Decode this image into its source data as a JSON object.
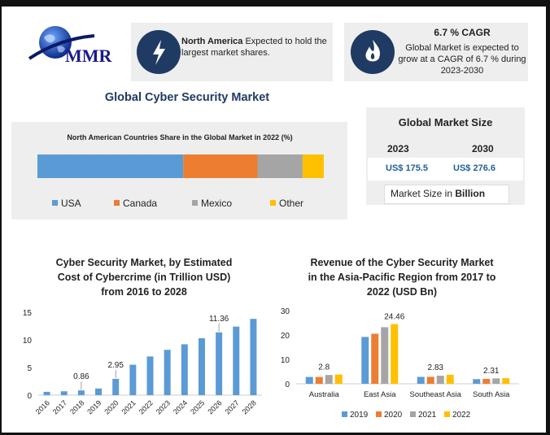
{
  "logo": {
    "text": "MMR"
  },
  "card_north_america": {
    "icon": "lightning-icon",
    "bold_text": "North America",
    "text": " Expected to hold the largest market shares."
  },
  "card_cagr": {
    "icon": "flame-icon",
    "title": "6.7 % CAGR",
    "text": "Global Market is expected to grow at a CAGR of 6.7 % during 2023-2030"
  },
  "page_title": "Global Cyber Security Market",
  "market_size": {
    "title": "Global Market Size",
    "year_1": "2023",
    "year_2": "2030",
    "value_1": "US$ 175.5",
    "value_2": "US$ 276.6",
    "note_prefix": "Market Size in ",
    "note_unit": "Billion"
  },
  "colors": {
    "blue": "#5b9bd5",
    "orange": "#ed7d31",
    "gray": "#a5a5a5",
    "yellow": "#ffc000",
    "navy": "#1f3b63"
  },
  "chart_data": [
    {
      "type": "bar",
      "orientation": "horizontal-stacked",
      "title": "North American Countries Share in the Global Market in 2022 (%)",
      "series": [
        {
          "name": "USA",
          "values": [
            55
          ]
        },
        {
          "name": "Canada",
          "values": [
            28
          ]
        },
        {
          "name": "Mexico",
          "values": [
            17
          ]
        },
        {
          "name": "Other",
          "values": [
            8
          ]
        }
      ],
      "legend": "bottom"
    },
    {
      "type": "bar",
      "title_lines": [
        "Cyber Security Market, by Estimated",
        "Cost of Cybercrime (in Trillion USD)",
        "from 2016 to 2028"
      ],
      "categories": [
        "2016",
        "2017",
        "2018",
        "2019",
        "2020",
        "2021",
        "2022",
        "2023",
        "2024",
        "2025",
        "2026",
        "2027",
        "2028"
      ],
      "values": [
        0.6,
        0.7,
        0.86,
        1.2,
        2.95,
        5.5,
        7.0,
        8.2,
        9.2,
        10.3,
        11.36,
        12.4,
        13.8
      ],
      "data_labels": {
        "2018": "0.86",
        "2020": "2.95",
        "2026": "11.36"
      },
      "yticks": [
        "0",
        "5",
        "10",
        "15"
      ],
      "ylim": [
        0,
        15
      ],
      "grid": false
    },
    {
      "type": "bar",
      "title_lines": [
        "Revenue of the Cyber Security Market",
        "in the Asia-Pacific Region from 2017 to",
        "2022 (USD Bn)"
      ],
      "categories": [
        "Australia",
        "East Asia",
        "Southeast Asia",
        "South Asia"
      ],
      "series": [
        {
          "name": "2019",
          "values": [
            2.8,
            19.2,
            2.83,
            1.9
          ]
        },
        {
          "name": "2020",
          "values": [
            2.8,
            20.5,
            2.85,
            2.0
          ]
        },
        {
          "name": "2021",
          "values": [
            3.6,
            23.2,
            3.3,
            2.2
          ]
        },
        {
          "name": "2022",
          "values": [
            3.8,
            24.46,
            3.7,
            2.31
          ]
        }
      ],
      "data_labels": {
        "Australia": "2.8",
        "East Asia": "24.46",
        "Southeast Asia": "2.83",
        "South Asia": "2.31"
      },
      "yticks": [
        "0",
        "10",
        "20",
        "30"
      ],
      "ylim": [
        0,
        30
      ],
      "legend": "bottom",
      "grid": false
    }
  ]
}
